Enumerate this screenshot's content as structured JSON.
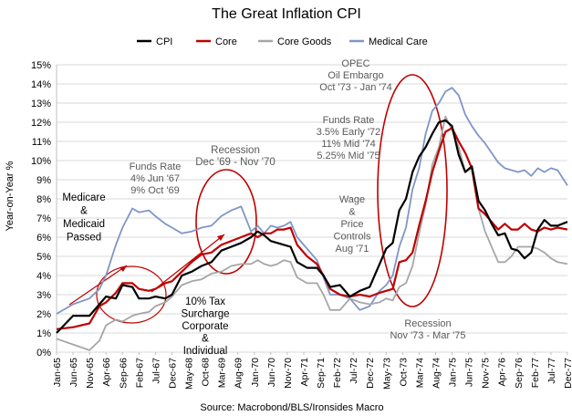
{
  "chart_data": {
    "type": "line",
    "title": "The Great Inflation CPI",
    "ylabel": "Year-on-Year %",
    "xlabel": "",
    "source": "Source: Macrobond/BLS/Ironsides Macro",
    "ylim": [
      0,
      15
    ],
    "y_ticks": [
      "0%",
      "1%",
      "2%",
      "3%",
      "4%",
      "5%",
      "6%",
      "7%",
      "8%",
      "9%",
      "10%",
      "11%",
      "12%",
      "13%",
      "14%",
      "15%"
    ],
    "x_ticks": [
      "Jan-65",
      "Jun-65",
      "Nov-65",
      "Apr-66",
      "Sep-66",
      "Feb-67",
      "Jul-67",
      "Dec-67",
      "May-68",
      "Oct-68",
      "Mar-69",
      "Aug-69",
      "Jan-70",
      "Jun-70",
      "Nov-70",
      "Apr-71",
      "Sep-71",
      "Feb-72",
      "Jul-72",
      "Dec-72",
      "May-73",
      "Oct-73",
      "Mar-74",
      "Aug-74",
      "Jan-75",
      "Jun-75",
      "Nov-75",
      "Apr-76",
      "Sep-76",
      "Feb-77",
      "Jul-77",
      "Dec-77"
    ],
    "legend_position": "top",
    "series": [
      {
        "name": "CPI",
        "color": "#000000",
        "points": [
          [
            "1965-01",
            1.0
          ],
          [
            "1965-06",
            1.9
          ],
          [
            "1965-11",
            1.9
          ],
          [
            "1966-02",
            2.5
          ],
          [
            "1966-04",
            2.9
          ],
          [
            "1966-07",
            2.8
          ],
          [
            "1966-09",
            3.5
          ],
          [
            "1966-12",
            3.4
          ],
          [
            "1967-02",
            2.8
          ],
          [
            "1967-05",
            2.8
          ],
          [
            "1967-07",
            2.9
          ],
          [
            "1967-10",
            2.8
          ],
          [
            "1967-12",
            3.0
          ],
          [
            "1968-03",
            4.0
          ],
          [
            "1968-06",
            4.2
          ],
          [
            "1968-09",
            4.5
          ],
          [
            "1968-12",
            4.7
          ],
          [
            "1969-03",
            5.3
          ],
          [
            "1969-06",
            5.5
          ],
          [
            "1969-09",
            5.7
          ],
          [
            "1969-12",
            6.0
          ],
          [
            "1970-02",
            6.3
          ],
          [
            "1970-04",
            6.1
          ],
          [
            "1970-06",
            5.8
          ],
          [
            "1970-08",
            5.7
          ],
          [
            "1970-10",
            5.6
          ],
          [
            "1970-12",
            5.5
          ],
          [
            "1971-02",
            4.7
          ],
          [
            "1971-05",
            4.4
          ],
          [
            "1971-08",
            4.4
          ],
          [
            "1971-10",
            4.0
          ],
          [
            "1971-12",
            3.4
          ],
          [
            "1972-03",
            3.5
          ],
          [
            "1972-06",
            2.9
          ],
          [
            "1972-09",
            3.2
          ],
          [
            "1972-12",
            3.4
          ],
          [
            "1973-03",
            4.6
          ],
          [
            "1973-05",
            5.4
          ],
          [
            "1973-07",
            5.7
          ],
          [
            "1973-09",
            7.4
          ],
          [
            "1973-11",
            8.0
          ],
          [
            "1974-01",
            9.4
          ],
          [
            "1974-03",
            10.2
          ],
          [
            "1974-05",
            10.7
          ],
          [
            "1974-07",
            11.4
          ],
          [
            "1974-09",
            12.0
          ],
          [
            "1974-11",
            12.1
          ],
          [
            "1975-01",
            11.8
          ],
          [
            "1975-03",
            10.3
          ],
          [
            "1975-05",
            9.4
          ],
          [
            "1975-07",
            9.7
          ],
          [
            "1975-09",
            7.9
          ],
          [
            "1975-11",
            7.4
          ],
          [
            "1976-01",
            6.7
          ],
          [
            "1976-03",
            6.1
          ],
          [
            "1976-05",
            6.2
          ],
          [
            "1976-07",
            5.4
          ],
          [
            "1976-09",
            5.3
          ],
          [
            "1976-11",
            4.9
          ],
          [
            "1977-01",
            5.2
          ],
          [
            "1977-03",
            6.4
          ],
          [
            "1977-05",
            6.9
          ],
          [
            "1977-07",
            6.6
          ],
          [
            "1977-09",
            6.6
          ],
          [
            "1977-12",
            6.8
          ]
        ]
      },
      {
        "name": "Core",
        "color": "#c00000",
        "points": [
          [
            "1965-01",
            1.2
          ],
          [
            "1965-06",
            1.3
          ],
          [
            "1965-11",
            1.5
          ],
          [
            "1966-02",
            2.4
          ],
          [
            "1966-04",
            2.6
          ],
          [
            "1966-07",
            3.1
          ],
          [
            "1966-09",
            3.6
          ],
          [
            "1966-12",
            3.6
          ],
          [
            "1967-02",
            3.3
          ],
          [
            "1967-05",
            3.2
          ],
          [
            "1967-07",
            3.3
          ],
          [
            "1967-10",
            3.6
          ],
          [
            "1967-12",
            3.7
          ],
          [
            "1968-03",
            4.2
          ],
          [
            "1968-06",
            4.7
          ],
          [
            "1968-09",
            5.1
          ],
          [
            "1968-12",
            5.2
          ],
          [
            "1969-03",
            5.6
          ],
          [
            "1969-06",
            5.8
          ],
          [
            "1969-09",
            6.0
          ],
          [
            "1969-12",
            6.2
          ],
          [
            "1970-02",
            6.0
          ],
          [
            "1970-04",
            6.2
          ],
          [
            "1970-06",
            6.2
          ],
          [
            "1970-08",
            6.4
          ],
          [
            "1970-10",
            6.4
          ],
          [
            "1970-12",
            6.5
          ],
          [
            "1971-02",
            5.6
          ],
          [
            "1971-05",
            5.0
          ],
          [
            "1971-08",
            4.6
          ],
          [
            "1971-10",
            4.0
          ],
          [
            "1971-12",
            3.3
          ],
          [
            "1972-03",
            3.0
          ],
          [
            "1972-06",
            2.9
          ],
          [
            "1972-09",
            3.0
          ],
          [
            "1972-12",
            2.9
          ],
          [
            "1973-03",
            3.1
          ],
          [
            "1973-05",
            3.2
          ],
          [
            "1973-07",
            3.3
          ],
          [
            "1973-09",
            4.7
          ],
          [
            "1973-11",
            4.8
          ],
          [
            "1974-01",
            5.2
          ],
          [
            "1974-03",
            6.6
          ],
          [
            "1974-05",
            7.9
          ],
          [
            "1974-07",
            9.4
          ],
          [
            "1974-09",
            10.5
          ],
          [
            "1974-11",
            11.5
          ],
          [
            "1975-01",
            11.7
          ],
          [
            "1975-03",
            11.0
          ],
          [
            "1975-05",
            10.4
          ],
          [
            "1975-07",
            9.6
          ],
          [
            "1975-09",
            7.5
          ],
          [
            "1975-11",
            7.2
          ],
          [
            "1976-01",
            6.8
          ],
          [
            "1976-03",
            6.4
          ],
          [
            "1976-05",
            6.7
          ],
          [
            "1976-07",
            6.4
          ],
          [
            "1976-09",
            6.4
          ],
          [
            "1976-11",
            6.7
          ],
          [
            "1977-01",
            6.4
          ],
          [
            "1977-03",
            6.3
          ],
          [
            "1977-05",
            6.5
          ],
          [
            "1977-07",
            6.4
          ],
          [
            "1977-09",
            6.5
          ],
          [
            "1977-12",
            6.4
          ]
        ]
      },
      {
        "name": "Core Goods",
        "color": "#a6a6a6",
        "points": [
          [
            "1965-01",
            0.7
          ],
          [
            "1965-06",
            0.4
          ],
          [
            "1965-11",
            0.1
          ],
          [
            "1966-02",
            0.6
          ],
          [
            "1966-04",
            1.4
          ],
          [
            "1966-07",
            1.7
          ],
          [
            "1966-09",
            1.6
          ],
          [
            "1966-12",
            1.9
          ],
          [
            "1967-02",
            2.0
          ],
          [
            "1967-05",
            2.1
          ],
          [
            "1967-07",
            2.4
          ],
          [
            "1967-10",
            2.6
          ],
          [
            "1967-12",
            2.9
          ],
          [
            "1968-03",
            3.5
          ],
          [
            "1968-06",
            3.7
          ],
          [
            "1968-09",
            3.8
          ],
          [
            "1968-12",
            4.1
          ],
          [
            "1969-03",
            4.2
          ],
          [
            "1969-06",
            4.5
          ],
          [
            "1969-09",
            4.6
          ],
          [
            "1969-12",
            4.6
          ],
          [
            "1970-02",
            4.8
          ],
          [
            "1970-04",
            4.6
          ],
          [
            "1970-06",
            4.5
          ],
          [
            "1970-08",
            4.6
          ],
          [
            "1970-10",
            4.8
          ],
          [
            "1970-12",
            4.7
          ],
          [
            "1971-02",
            3.9
          ],
          [
            "1971-05",
            3.6
          ],
          [
            "1971-08",
            3.6
          ],
          [
            "1971-10",
            3.0
          ],
          [
            "1971-12",
            2.2
          ],
          [
            "1972-03",
            2.2
          ],
          [
            "1972-06",
            2.8
          ],
          [
            "1972-09",
            2.6
          ],
          [
            "1972-12",
            2.5
          ],
          [
            "1973-03",
            2.6
          ],
          [
            "1973-05",
            2.8
          ],
          [
            "1973-07",
            2.7
          ],
          [
            "1973-09",
            3.4
          ],
          [
            "1973-11",
            3.6
          ],
          [
            "1974-01",
            4.5
          ],
          [
            "1974-03",
            6.2
          ],
          [
            "1974-05",
            7.7
          ],
          [
            "1974-07",
            9.8
          ],
          [
            "1974-09",
            10.7
          ],
          [
            "1974-11",
            12.3
          ],
          [
            "1975-01",
            11.6
          ],
          [
            "1975-03",
            10.7
          ],
          [
            "1975-05",
            9.4
          ],
          [
            "1975-07",
            9.6
          ],
          [
            "1975-09",
            7.5
          ],
          [
            "1975-11",
            6.3
          ],
          [
            "1976-01",
            5.5
          ],
          [
            "1976-03",
            4.7
          ],
          [
            "1976-05",
            4.7
          ],
          [
            "1976-07",
            5.0
          ],
          [
            "1976-09",
            5.5
          ],
          [
            "1976-11",
            5.5
          ],
          [
            "1977-01",
            5.5
          ],
          [
            "1977-03",
            5.4
          ],
          [
            "1977-05",
            5.2
          ],
          [
            "1977-07",
            4.9
          ],
          [
            "1977-09",
            4.7
          ],
          [
            "1977-12",
            4.6
          ]
        ]
      },
      {
        "name": "Medical Care",
        "color": "#7f96c8",
        "points": [
          [
            "1965-01",
            2.0
          ],
          [
            "1965-06",
            2.5
          ],
          [
            "1965-11",
            2.8
          ],
          [
            "1966-02",
            3.3
          ],
          [
            "1966-04",
            4.0
          ],
          [
            "1966-07",
            5.6
          ],
          [
            "1966-09",
            6.5
          ],
          [
            "1966-12",
            7.5
          ],
          [
            "1967-02",
            7.3
          ],
          [
            "1967-05",
            7.4
          ],
          [
            "1967-07",
            7.1
          ],
          [
            "1967-10",
            6.7
          ],
          [
            "1967-12",
            6.5
          ],
          [
            "1968-03",
            6.2
          ],
          [
            "1968-06",
            6.3
          ],
          [
            "1968-09",
            6.5
          ],
          [
            "1968-12",
            6.6
          ],
          [
            "1969-03",
            7.1
          ],
          [
            "1969-06",
            7.4
          ],
          [
            "1969-09",
            7.6
          ],
          [
            "1969-12",
            6.3
          ],
          [
            "1970-02",
            6.6
          ],
          [
            "1970-04",
            6.2
          ],
          [
            "1970-06",
            6.6
          ],
          [
            "1970-08",
            6.5
          ],
          [
            "1970-10",
            6.6
          ],
          [
            "1970-12",
            6.8
          ],
          [
            "1971-02",
            6.0
          ],
          [
            "1971-05",
            5.4
          ],
          [
            "1971-08",
            4.8
          ],
          [
            "1971-10",
            3.9
          ],
          [
            "1971-12",
            3.0
          ],
          [
            "1972-03",
            3.0
          ],
          [
            "1972-06",
            2.8
          ],
          [
            "1972-09",
            2.2
          ],
          [
            "1972-12",
            2.4
          ],
          [
            "1973-03",
            3.2
          ],
          [
            "1973-05",
            3.5
          ],
          [
            "1973-07",
            4.0
          ],
          [
            "1973-09",
            5.5
          ],
          [
            "1973-11",
            6.5
          ],
          [
            "1974-01",
            8.5
          ],
          [
            "1974-03",
            9.6
          ],
          [
            "1974-05",
            11.4
          ],
          [
            "1974-07",
            12.6
          ],
          [
            "1974-09",
            13.0
          ],
          [
            "1974-11",
            13.6
          ],
          [
            "1975-01",
            13.8
          ],
          [
            "1975-03",
            13.4
          ],
          [
            "1975-05",
            12.4
          ],
          [
            "1975-07",
            11.8
          ],
          [
            "1975-09",
            11.3
          ],
          [
            "1975-11",
            10.9
          ],
          [
            "1976-01",
            10.4
          ],
          [
            "1976-03",
            9.9
          ],
          [
            "1976-05",
            9.6
          ],
          [
            "1976-07",
            9.5
          ],
          [
            "1976-09",
            9.4
          ],
          [
            "1976-11",
            9.5
          ],
          [
            "1977-01",
            9.2
          ],
          [
            "1977-03",
            9.6
          ],
          [
            "1977-05",
            9.4
          ],
          [
            "1977-07",
            9.6
          ],
          [
            "1977-09",
            9.5
          ],
          [
            "1977-12",
            8.7
          ]
        ]
      }
    ],
    "annotations": [
      {
        "name": "annotation-medicare",
        "lines": [
          "Medicare",
          "&",
          "Medicaid",
          "Passed"
        ],
        "color": "#000000"
      },
      {
        "name": "annotation-funds-rate-67-69",
        "lines": [
          "Funds Rate",
          "4% Jun '67",
          "9% Oct '69"
        ],
        "color": "#595959"
      },
      {
        "name": "annotation-recession-69-70",
        "lines": [
          "Recession",
          "Dec '69 - Nov '70"
        ],
        "color": "#595959"
      },
      {
        "name": "annotation-tax-surcharge",
        "lines": [
          "10% Tax",
          "Surcharge",
          "Corporate",
          "&",
          "Individual"
        ],
        "color": "#000000"
      },
      {
        "name": "annotation-opec",
        "lines": [
          "OPEC",
          "Oil Embargo",
          "Oct '73 - Jan '74"
        ],
        "color": "#595959"
      },
      {
        "name": "annotation-funds-rate-72-75",
        "lines": [
          "Funds Rate",
          "3.5% Early '72",
          "11% Mid '74",
          "5.25% Mid '75"
        ],
        "color": "#595959"
      },
      {
        "name": "annotation-wage-price-controls",
        "lines": [
          "Wage",
          "&",
          "Price",
          "Controls",
          "Aug '71"
        ],
        "color": "#595959"
      },
      {
        "name": "annotation-recession-73-75",
        "lines": [
          "Recession",
          "Nov '73 - Mar '75"
        ],
        "color": "#595959"
      }
    ]
  }
}
